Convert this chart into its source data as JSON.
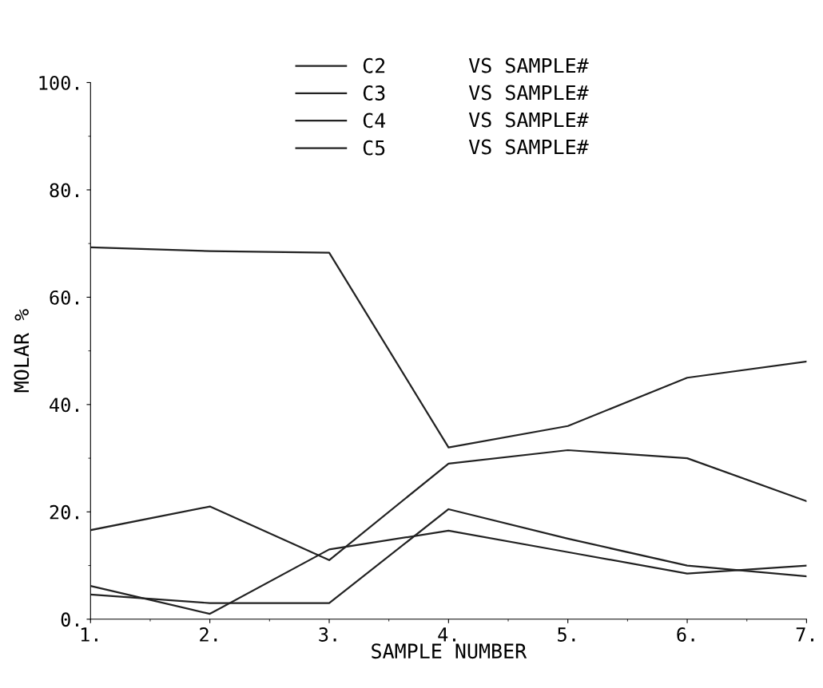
{
  "chart_data": {
    "type": "line",
    "xlabel": "SAMPLE NUMBER",
    "ylabel": "MOLAR %",
    "x": [
      1,
      2,
      3,
      4,
      5,
      6,
      7
    ],
    "series": [
      {
        "name": "C2",
        "color": "#222222",
        "values": [
          69.3,
          68.6,
          68.3,
          32,
          36,
          45,
          48
        ]
      },
      {
        "name": "C3",
        "color": "#222222",
        "values": [
          16.6,
          21,
          11,
          29,
          31.5,
          30,
          22
        ]
      },
      {
        "name": "C4",
        "color": "#222222",
        "values": [
          6.2,
          1,
          13,
          16.5,
          12.5,
          8.5,
          10
        ]
      },
      {
        "name": "C5",
        "color": "#222222",
        "values": [
          4.6,
          3,
          3,
          20.5,
          15,
          10,
          8
        ]
      }
    ],
    "annotations": [
      "VS SAMPLE#",
      "VS SAMPLE#",
      "VS SAMPLE#",
      "VS SAMPLE#"
    ],
    "xlim": [
      1,
      7
    ],
    "ylim": [
      0,
      100
    ],
    "xticks": [
      {
        "value": 1,
        "label": "1."
      },
      {
        "value": 2,
        "label": "2."
      },
      {
        "value": 3,
        "label": "3."
      },
      {
        "value": 4,
        "label": "4."
      },
      {
        "value": 5,
        "label": "5."
      },
      {
        "value": 6,
        "label": "6."
      },
      {
        "value": 7,
        "label": "7."
      }
    ],
    "yticks": [
      {
        "value": 0,
        "label": "0."
      },
      {
        "value": 20,
        "label": "20."
      },
      {
        "value": 40,
        "label": "40."
      },
      {
        "value": 60,
        "label": "60."
      },
      {
        "value": 80,
        "label": "80."
      },
      {
        "value": 100,
        "label": "100."
      }
    ],
    "legend": "top",
    "grid": false,
    "line_style": "solid"
  }
}
